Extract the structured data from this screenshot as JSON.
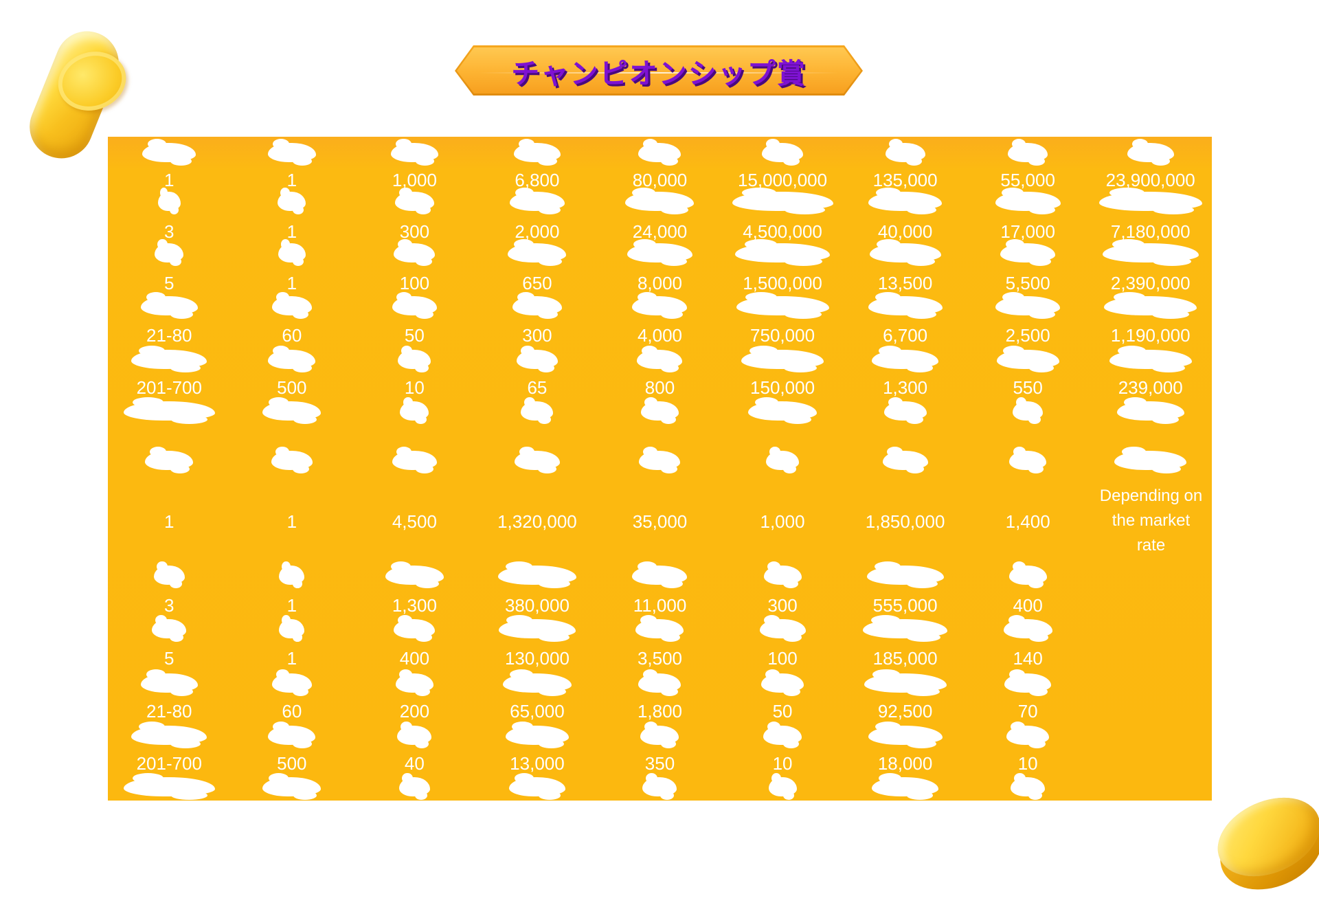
{
  "banner": {
    "title": "チャンピオンシップ賞"
  },
  "note": {
    "lines": [
      "Depending on",
      "the market",
      "rate"
    ]
  },
  "colors": {
    "table_gold": "#fcb80f",
    "banner_gold_light": "#ffc851",
    "banner_gold_dark": "#e08c10",
    "title_purple": "#7e12d2",
    "title_shadow_purple": "#49097e",
    "value_text": "#ffffff",
    "blob_white": "#ffffff",
    "coin_gold": "#ffd93b"
  },
  "decorations": {
    "top_left": "gold-coin",
    "bottom_right": "gold-coin"
  },
  "prize_table": {
    "columns": 9,
    "sections": [
      {
        "name": "section-1",
        "header_blob_widths": [
          78,
          70,
          69,
          68,
          62,
          60,
          58,
          58,
          68
        ],
        "rows": [
          {
            "cells": [
              "1",
              "1",
              "1,000",
              "6,800",
              "80,000",
              "15,000,000",
              "135,000",
              "55,000",
              "23,900,000"
            ],
            "blob_widths": [
              33,
              41,
              57,
              80,
              100,
              147,
              107,
              95,
              150
            ]
          },
          {
            "cells": [
              "3",
              "1",
              "300",
              "2,000",
              "24,000",
              "4,500,000",
              "40,000",
              "17,000",
              "7,180,000"
            ],
            "blob_widths": [
              42,
              40,
              60,
              85,
              95,
              138,
              104,
              80,
              140
            ]
          },
          {
            "cells": [
              "5",
              "1",
              "100",
              "650",
              "8,000",
              "1,500,000",
              "13,500",
              "5,500",
              "2,390,000"
            ],
            "blob_widths": [
              83,
              58,
              65,
              72,
              80,
              135,
              108,
              94,
              135
            ]
          },
          {
            "cells": [
              "21-80",
              "60",
              "50",
              "300",
              "4,000",
              "750,000",
              "6,700",
              "2,500",
              "1,190,000"
            ],
            "blob_widths": [
              110,
              69,
              48,
              60,
              66,
              120,
              97,
              91,
              120
            ]
          },
          {
            "cells": [
              "201-700",
              "500",
              "10",
              "65",
              "800",
              "150,000",
              "1,300",
              "550",
              "239,000"
            ],
            "blob_widths": [
              133,
              85,
              42,
              47,
              55,
              100,
              62,
              44,
              98
            ]
          }
        ]
      },
      {
        "name": "section-2",
        "header_blob_widths": [
          70,
          60,
          65,
          66,
          60,
          48,
          66,
          54,
          105
        ],
        "rows": [
          {
            "cells": [
              "1",
              "1",
              "4,500",
              "1,320,000",
              "35,000",
              "1,000",
              "1,850,000",
              "1,400",
              ""
            ],
            "blob_widths": [
              45,
              37,
              85,
              114,
              80,
              55,
              112,
              55,
              null
            ]
          },
          {
            "cells": [
              "3",
              "1",
              "1,300",
              "380,000",
              "11,000",
              "300",
              "555,000",
              "400",
              ""
            ],
            "blob_widths": [
              50,
              37,
              60,
              112,
              70,
              67,
              123,
              71,
              null
            ]
          },
          {
            "cells": [
              "5",
              "1",
              "400",
              "130,000",
              "3,500",
              "100",
              "185,000",
              "140",
              ""
            ],
            "blob_widths": [
              83,
              58,
              55,
              100,
              62,
              62,
              120,
              68,
              null
            ]
          },
          {
            "cells": [
              "21-80",
              "60",
              "200",
              "65,000",
              "1,800",
              "50",
              "92,500",
              "70",
              ""
            ],
            "blob_widths": [
              110,
              69,
              50,
              92,
              56,
              56,
              108,
              62,
              null
            ]
          },
          {
            "cells": [
              "201-700",
              "500",
              "40",
              "13,000",
              "350",
              "10",
              "18,000",
              "10",
              ""
            ],
            "blob_widths": [
              133,
              85,
              45,
              82,
              50,
              41,
              97,
              50,
              null
            ]
          }
        ]
      }
    ]
  }
}
